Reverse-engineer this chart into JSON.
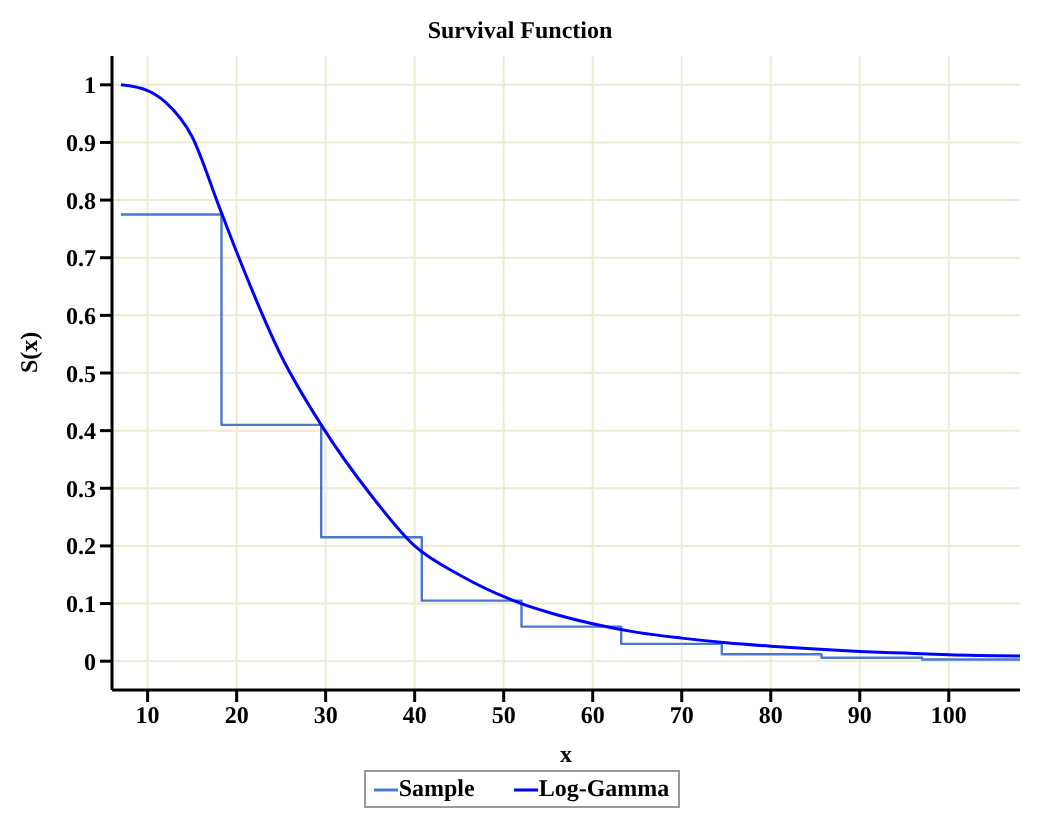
{
  "chart_data": {
    "type": "line",
    "title": "Survival Function",
    "xlabel": "x",
    "ylabel": "S(x)",
    "xlim": [
      6,
      108
    ],
    "ylim": [
      -0.05,
      1.05
    ],
    "xticks": [
      10,
      20,
      30,
      40,
      50,
      60,
      70,
      80,
      90,
      100
    ],
    "yticks": [
      0,
      0.1,
      0.2,
      0.3,
      0.4,
      0.5,
      0.6,
      0.7,
      0.8,
      0.9,
      1
    ],
    "grid": true,
    "legend": "bottom",
    "marker": "none",
    "series": [
      {
        "name": "Sample",
        "type": "step",
        "color": "#4a78d0",
        "x": [
          7,
          18.3,
          29.5,
          40.8,
          52,
          63.2,
          74.5,
          85.7,
          97,
          108
        ],
        "values": [
          0.775,
          0.41,
          0.215,
          0.105,
          0.06,
          0.03,
          0.012,
          0.006,
          0.003,
          0.003
        ]
      },
      {
        "name": "Log-Gamma",
        "color": "#0000ff",
        "x": [
          7,
          10,
          12,
          15,
          18,
          20,
          25,
          29.5,
          35,
          40,
          45,
          52,
          55,
          60,
          65,
          70,
          75,
          80,
          85,
          90,
          95,
          100,
          108
        ],
        "values": [
          1,
          0.99,
          0.97,
          0.91,
          0.79,
          0.71,
          0.53,
          0.41,
          0.29,
          0.2,
          0.15,
          0.1,
          0.085,
          0.065,
          0.05,
          0.04,
          0.032,
          0.026,
          0.021,
          0.017,
          0.014,
          0.011,
          0.009
        ]
      }
    ]
  }
}
